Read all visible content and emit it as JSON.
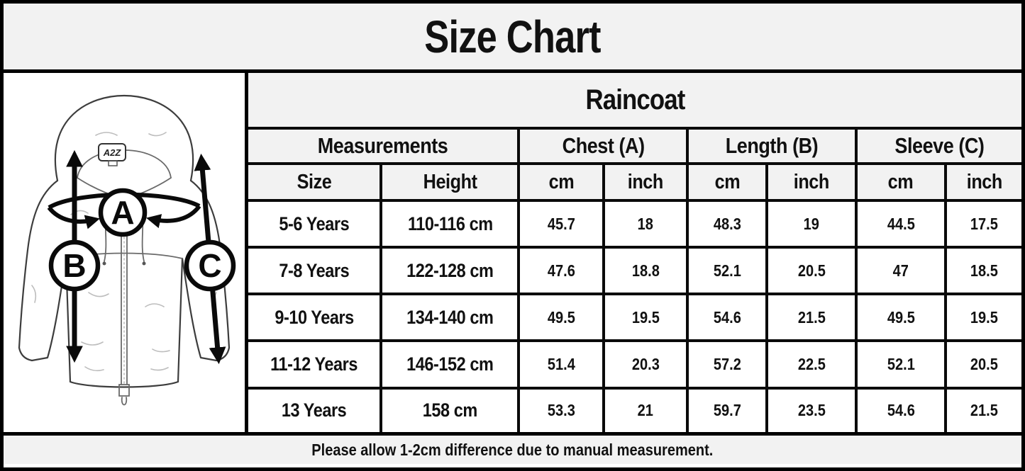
{
  "title": "Size Chart",
  "product": "Raincoat",
  "table": {
    "group_headers": {
      "measurements": "Measurements",
      "chest": "Chest (A)",
      "length": "Length (B)",
      "sleeve": "Sleeve (C)"
    },
    "sub_headers": {
      "size": "Size",
      "height": "Height",
      "cm": "cm",
      "inch": "inch"
    }
  },
  "chart_data": {
    "type": "table",
    "title": "Size Chart",
    "subtitle": "Raincoat",
    "column_groups": [
      "Measurements",
      "Chest (A)",
      "Length (B)",
      "Sleeve (C)"
    ],
    "columns": [
      "Size",
      "Height",
      "Chest (A) cm",
      "Chest (A) inch",
      "Length (B) cm",
      "Length (B) inch",
      "Sleeve (C) cm",
      "Sleeve (C) inch"
    ],
    "rows": [
      [
        "5-6 Years",
        "110-116 cm",
        45.7,
        18,
        48.3,
        19,
        44.5,
        17.5
      ],
      [
        "7-8 Years",
        "122-128 cm",
        47.6,
        18.8,
        52.1,
        20.5,
        47,
        18.5
      ],
      [
        "9-10 Years",
        "134-140 cm",
        49.5,
        19.5,
        54.6,
        21.5,
        49.5,
        19.5
      ],
      [
        "11-12 Years",
        "146-152 cm",
        51.4,
        20.3,
        57.2,
        22.5,
        52.1,
        20.5
      ],
      [
        "13 Years",
        "158 cm",
        53.3,
        21,
        59.7,
        23.5,
        54.6,
        21.5
      ]
    ]
  },
  "diagram": {
    "chest_label": "A",
    "length_label": "B",
    "sleeve_label": "C",
    "brand": "A2Z"
  },
  "footer": {
    "note": "Please allow 1-2cm difference due to manual measurement."
  },
  "colors": {
    "border": "#000000",
    "band_bg": "#f2f2f2",
    "cell_bg": "#ffffff",
    "text": "#111111"
  }
}
